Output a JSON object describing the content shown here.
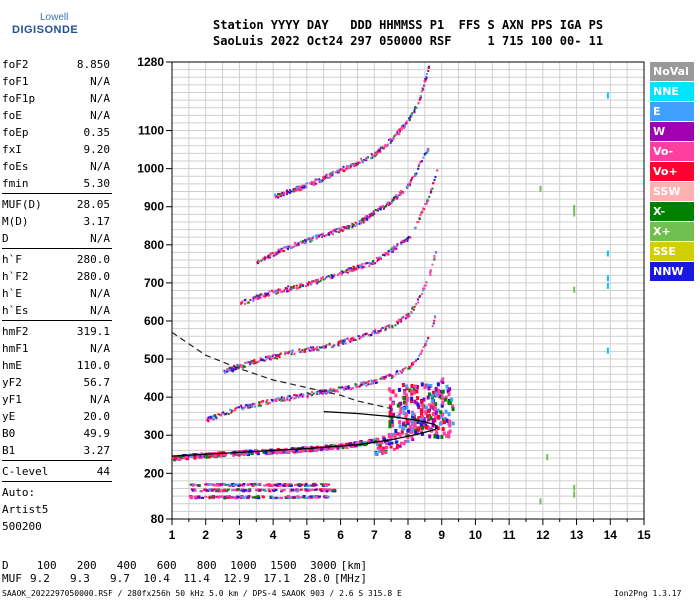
{
  "logo": {
    "line1": "Lowell",
    "line2": "DIGISONDE"
  },
  "header": {
    "row1": "Station YYYY DAY   DDD HHMMSS P1  FFS S AXN PPS IGA PS",
    "row2": "SaoLuis 2022 Oct24 297 050000 RSF     1 715 100 00- 11"
  },
  "params": [
    {
      "name": "foF2",
      "value": "8.850"
    },
    {
      "name": "foF1",
      "value": "N/A"
    },
    {
      "name": "foF1p",
      "value": "N/A"
    },
    {
      "name": "foE",
      "value": "N/A"
    },
    {
      "name": "foEp",
      "value": "0.35"
    },
    {
      "name": "fxI",
      "value": "9.20"
    },
    {
      "name": "foEs",
      "value": "N/A"
    },
    {
      "name": "fmin",
      "value": "5.30"
    },
    {
      "name": "MUF(D)",
      "value": "28.05"
    },
    {
      "name": "M(D)",
      "value": "3.17"
    },
    {
      "name": "D",
      "value": "N/A"
    },
    {
      "name": "h`F",
      "value": "280.0"
    },
    {
      "name": "h`F2",
      "value": "280.0"
    },
    {
      "name": "h`E",
      "value": "N/A"
    },
    {
      "name": "h`Es",
      "value": "N/A"
    },
    {
      "name": "hmF2",
      "value": "319.1"
    },
    {
      "name": "hmF1",
      "value": "N/A"
    },
    {
      "name": "hmE",
      "value": "110.0"
    },
    {
      "name": "yF2",
      "value": "56.7"
    },
    {
      "name": "yF1",
      "value": "N/A"
    },
    {
      "name": "yE",
      "value": "20.0"
    },
    {
      "name": "B0",
      "value": "49.9"
    },
    {
      "name": "B1",
      "value": "3.27"
    },
    {
      "name": "C-level",
      "value": "44"
    }
  ],
  "auto": {
    "line1": "Auto:",
    "line2": "Artist5",
    "line3": "500200"
  },
  "legend": [
    {
      "label": "NoVal",
      "color": "#999999"
    },
    {
      "label": "NNE",
      "color": "#00e5ff"
    },
    {
      "label": "E",
      "color": "#3fa0ff"
    },
    {
      "label": "W",
      "color": "#a000b0"
    },
    {
      "label": "Vo-",
      "color": "#ff3fa0"
    },
    {
      "label": "Vo+",
      "color": "#ff0030"
    },
    {
      "label": "SSW",
      "color": "#ffb0b0"
    },
    {
      "label": "X-",
      "color": "#008000"
    },
    {
      "label": "X+",
      "color": "#70c050"
    },
    {
      "label": "SSE",
      "color": "#d0d000"
    },
    {
      "label": "NNW",
      "color": "#1818e0"
    }
  ],
  "chart_data": {
    "type": "scatter",
    "xlim": [
      1,
      15
    ],
    "ylim": [
      80,
      1280
    ],
    "x_ticks": [
      "1",
      "2",
      "3",
      "4",
      "5",
      "6",
      "7",
      "8",
      "9",
      "10",
      "11",
      "12",
      "13",
      "14",
      "15"
    ],
    "y_ticks": [
      {
        "value": 80,
        "label": "80"
      },
      {
        "value": 200,
        "label": "200"
      },
      {
        "value": 300,
        "label": "300"
      },
      {
        "value": 400,
        "label": "400"
      },
      {
        "value": 500,
        "label": "500"
      },
      {
        "value": 600,
        "label": "600"
      },
      {
        "value": 700,
        "label": "700"
      },
      {
        "value": 800,
        "label": "800"
      },
      {
        "value": 900,
        "label": "900"
      },
      {
        "value": 1000,
        "label": "1000"
      },
      {
        "value": 1100,
        "label": "1100"
      },
      {
        "value": 1280,
        "label": "1280"
      }
    ],
    "grid": true,
    "traces": [
      {
        "name": "F2 trace",
        "points": [
          [
            1.0,
            245
          ],
          [
            2.5,
            255
          ],
          [
            4.0,
            262
          ],
          [
            5.0,
            268
          ],
          [
            6.0,
            275
          ],
          [
            7.0,
            290
          ],
          [
            7.5,
            305
          ],
          [
            8.0,
            325
          ],
          [
            8.3,
            345
          ],
          [
            8.6,
            380
          ],
          [
            8.8,
            420
          ],
          [
            9.0,
            450
          ]
        ]
      },
      {
        "name": "2nd hop",
        "points": [
          [
            2.0,
            345
          ],
          [
            3.0,
            375
          ],
          [
            4.0,
            395
          ],
          [
            5.0,
            410
          ],
          [
            6.0,
            425
          ],
          [
            7.0,
            445
          ],
          [
            7.5,
            460
          ],
          [
            8.0,
            480
          ],
          [
            8.3,
            510
          ],
          [
            8.6,
            560
          ],
          [
            8.85,
            640
          ]
        ]
      },
      {
        "name": "3rd hop",
        "points": [
          [
            2.5,
            470
          ],
          [
            3.5,
            500
          ],
          [
            4.5,
            520
          ],
          [
            5.5,
            535
          ],
          [
            6.5,
            560
          ],
          [
            7.5,
            590
          ],
          [
            8.0,
            620
          ],
          [
            8.3,
            660
          ],
          [
            8.6,
            720
          ],
          [
            8.85,
            800
          ]
        ]
      },
      {
        "name": "4th hop",
        "points": [
          [
            3.0,
            650
          ],
          [
            4.0,
            680
          ],
          [
            5.0,
            700
          ],
          [
            6.0,
            730
          ],
          [
            7.0,
            760
          ],
          [
            7.5,
            790
          ],
          [
            8.0,
            820
          ],
          [
            8.3,
            870
          ],
          [
            8.6,
            930
          ],
          [
            8.85,
            1000
          ]
        ]
      },
      {
        "name": "5th hop",
        "points": [
          [
            3.5,
            760
          ],
          [
            4.5,
            800
          ],
          [
            5.5,
            830
          ],
          [
            6.5,
            860
          ],
          [
            7.0,
            890
          ],
          [
            7.5,
            920
          ],
          [
            8.0,
            960
          ],
          [
            8.3,
            1010
          ],
          [
            8.6,
            1060
          ]
        ]
      },
      {
        "name": "6th hop",
        "points": [
          [
            4.0,
            930
          ],
          [
            5.0,
            960
          ],
          [
            6.0,
            1000
          ],
          [
            7.0,
            1040
          ],
          [
            7.5,
            1080
          ],
          [
            8.0,
            1130
          ],
          [
            8.3,
            1180
          ],
          [
            8.6,
            1270
          ]
        ]
      }
    ],
    "es_traces": [
      {
        "y": 172,
        "x": [
          1.5,
          5.6
        ]
      },
      {
        "y": 158,
        "x": [
          1.5,
          5.8
        ]
      },
      {
        "y": 140,
        "x": [
          1.5,
          5.6
        ]
      }
    ],
    "profile": [
      [
        1.0,
        245
      ],
      [
        3.0,
        255
      ],
      [
        5.0,
        265
      ],
      [
        6.5,
        275
      ],
      [
        7.5,
        288
      ],
      [
        8.3,
        303
      ],
      [
        8.8,
        315
      ],
      [
        8.85,
        319
      ],
      [
        8.8,
        328
      ],
      [
        8.3,
        339
      ],
      [
        7.5,
        349
      ],
      [
        6.5,
        357
      ],
      [
        5.5,
        362
      ]
    ],
    "dashed_curve": [
      [
        1.0,
        570
      ],
      [
        1.5,
        540
      ],
      [
        2.0,
        510
      ],
      [
        3.0,
        475
      ],
      [
        4.0,
        445
      ],
      [
        5.0,
        425
      ],
      [
        6.0,
        405
      ],
      [
        6.5,
        390
      ],
      [
        7.0,
        380
      ],
      [
        7.5,
        370
      ]
    ]
  },
  "footer": {
    "d_label": "D",
    "d_values": [
      "100",
      "200",
      "400",
      "600",
      "800",
      "1000",
      "1500",
      "3000"
    ],
    "d_unit": "[km]",
    "muf_label": "MUF",
    "muf_values": [
      "9.2",
      "9.3",
      "9.7",
      "10.4",
      "11.4",
      "12.9",
      "17.1",
      "28.0"
    ],
    "muf_unit": "[MHz]",
    "info": "SAAOK_2022297050000.RSF / 280fx256h 50 kHz 5.0 km / DPS-4 SAAOK 903 / 2.6 S 315.8 E",
    "version": "Ion2Png 1.3.17"
  }
}
